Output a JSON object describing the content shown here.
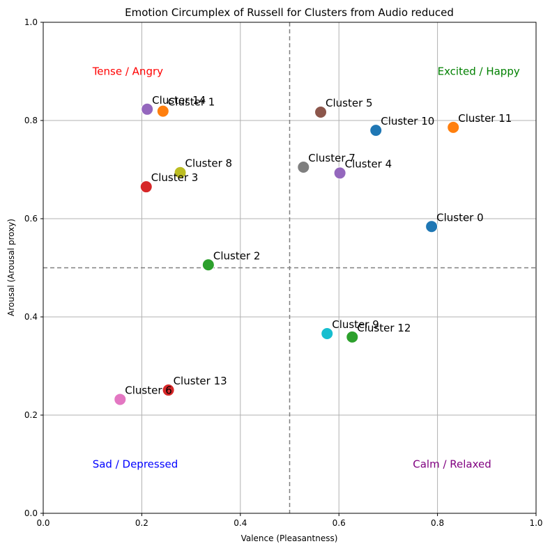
{
  "chart_data": {
    "type": "scatter",
    "title": "Emotion Circumplex of Russell for Clusters from Audio reduced",
    "xlabel": "Valence (Pleasantness)",
    "ylabel": "Arousal (Arousal proxy)",
    "xlim": [
      0,
      1
    ],
    "ylim": [
      0,
      1
    ],
    "xticks": [
      "0.0",
      "0.2",
      "0.4",
      "0.6",
      "0.8",
      "1.0"
    ],
    "yticks": [
      "0.0",
      "0.2",
      "0.4",
      "0.6",
      "0.8",
      "1.0"
    ],
    "grid": true,
    "reference_lines": {
      "x": 0.5,
      "y": 0.5,
      "style": "dashed",
      "color": "#808080"
    },
    "quadrant_labels": [
      {
        "text": "Tense / Angry",
        "x": 0.1,
        "y": 0.9,
        "color": "#ff0000"
      },
      {
        "text": "Excited / Happy",
        "x": 0.8,
        "y": 0.9,
        "color": "#008000"
      },
      {
        "text": "Sad / Depressed",
        "x": 0.1,
        "y": 0.1,
        "color": "#0000ff"
      },
      {
        "text": "Calm / Relaxed",
        "x": 0.75,
        "y": 0.1,
        "color": "#800080"
      }
    ],
    "points": [
      {
        "label": "Cluster 0",
        "x": 0.788,
        "y": 0.584,
        "color": "#1f77b4"
      },
      {
        "label": "Cluster 1",
        "x": 0.243,
        "y": 0.819,
        "color": "#ff7f0e"
      },
      {
        "label": "Cluster 2",
        "x": 0.335,
        "y": 0.506,
        "color": "#2ca02c"
      },
      {
        "label": "Cluster 3",
        "x": 0.209,
        "y": 0.665,
        "color": "#d62728"
      },
      {
        "label": "Cluster 4",
        "x": 0.602,
        "y": 0.693,
        "color": "#9467bd"
      },
      {
        "label": "Cluster 5",
        "x": 0.563,
        "y": 0.817,
        "color": "#8c564b"
      },
      {
        "label": "Cluster 6",
        "x": 0.156,
        "y": 0.232,
        "color": "#e377c2"
      },
      {
        "label": "Cluster 7",
        "x": 0.528,
        "y": 0.705,
        "color": "#7f7f7f"
      },
      {
        "label": "Cluster 8",
        "x": 0.278,
        "y": 0.694,
        "color": "#bcbd22"
      },
      {
        "label": "Cluster 9",
        "x": 0.576,
        "y": 0.366,
        "color": "#17becf"
      },
      {
        "label": "Cluster 10",
        "x": 0.675,
        "y": 0.78,
        "color": "#1f77b4"
      },
      {
        "label": "Cluster 11",
        "x": 0.832,
        "y": 0.786,
        "color": "#ff7f0e"
      },
      {
        "label": "Cluster 12",
        "x": 0.627,
        "y": 0.359,
        "color": "#2ca02c"
      },
      {
        "label": "Cluster 13",
        "x": 0.254,
        "y": 0.251,
        "color": "#d62728"
      },
      {
        "label": "Cluster 14",
        "x": 0.211,
        "y": 0.823,
        "color": "#9467bd"
      }
    ]
  }
}
